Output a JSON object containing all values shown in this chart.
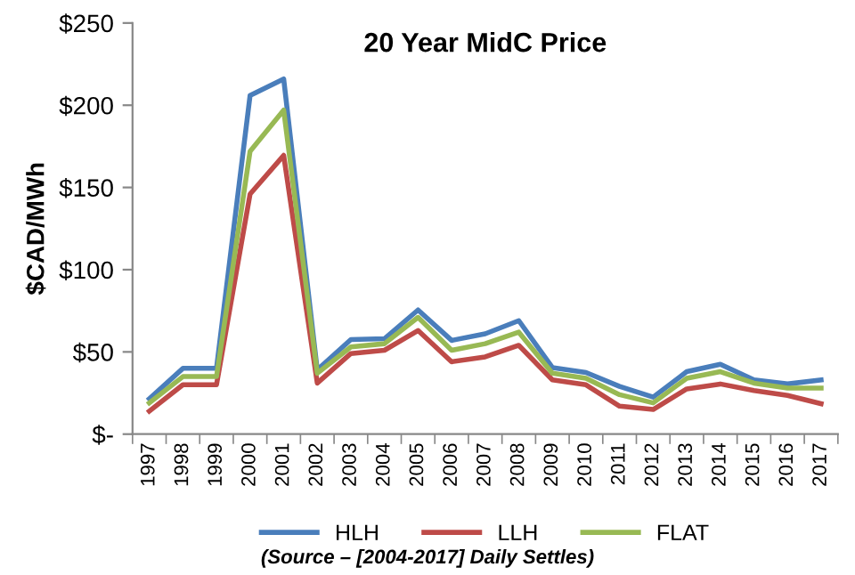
{
  "chart_data": {
    "type": "line",
    "title": "20 Year MidC Price",
    "ylabel": "$CAD/MWh",
    "categories": [
      "1997",
      "1998",
      "1999",
      "2000",
      "2001",
      "2002",
      "2003",
      "2004",
      "2005",
      "2006",
      "2007",
      "2008",
      "2009",
      "2010",
      "2011",
      "2012",
      "2013",
      "2014",
      "2015",
      "2016",
      "2017"
    ],
    "series": [
      {
        "name": "HLH",
        "color": "#4a7ebb",
        "values": [
          21.5,
          40,
          40,
          206,
          216,
          39,
          57.5,
          58,
          75.5,
          57,
          61,
          69,
          40.5,
          37.5,
          29,
          22.5,
          38,
          42.5,
          33,
          30.5,
          33
        ]
      },
      {
        "name": "LLH",
        "color": "#be4b48",
        "values": [
          14,
          30,
          30,
          146,
          169.5,
          31,
          49,
          51,
          63,
          44,
          47,
          54,
          33,
          30,
          17,
          15,
          27.5,
          30.5,
          26.5,
          23.5,
          18.5
        ]
      },
      {
        "name": "FLAT",
        "color": "#98b954",
        "values": [
          19,
          35,
          35,
          172,
          197,
          37,
          53,
          55,
          71,
          51,
          55,
          62,
          37,
          34,
          24,
          19,
          34,
          38,
          31,
          28,
          28
        ]
      }
    ],
    "ylim": [
      0,
      250
    ],
    "yticks": [
      {
        "value": 0,
        "label": "$-"
      },
      {
        "value": 50,
        "label": "$50"
      },
      {
        "value": 100,
        "label": "$100"
      },
      {
        "value": 150,
        "label": "$150"
      },
      {
        "value": 200,
        "label": "$200"
      },
      {
        "value": 250,
        "label": "$250"
      }
    ],
    "grid": false,
    "legend": "bottom",
    "marker": "none",
    "line_style": "solid",
    "annotations": [
      "(Source – [2004-2017] Daily Settles)"
    ]
  }
}
